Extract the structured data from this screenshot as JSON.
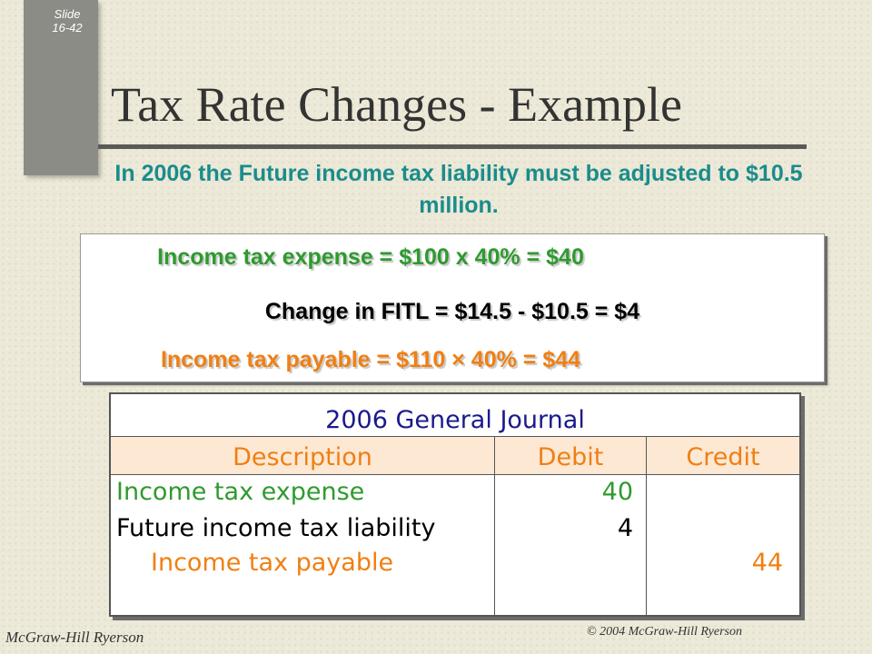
{
  "slide": {
    "label": "Slide",
    "number": "16-42"
  },
  "title": "Tax Rate Changes - Example",
  "subtitle": "In 2006 the Future income tax liability must be adjusted to $10.5 million.",
  "equations": {
    "expense": "Income tax expense = $100 x 40% = $40",
    "change": "Change in FITL = $14.5 - $10.5 = $4",
    "payable": "Income tax payable = $110 × 40% = $44"
  },
  "journal": {
    "title": "2006 General Journal",
    "headers": {
      "description": "Description",
      "debit": "Debit",
      "credit": "Credit"
    },
    "rows": [
      {
        "description": "Income tax expense",
        "debit": "40",
        "credit": ""
      },
      {
        "description": "Future income tax liability",
        "debit": "4",
        "credit": ""
      },
      {
        "description": "Income tax payable",
        "debit": "",
        "credit": "44"
      }
    ]
  },
  "footer": {
    "publisher": "McGraw-Hill Ryerson",
    "copyright": "© 2004 McGraw-Hill  Ryerson"
  },
  "colors": {
    "green": "#2f9a2f",
    "orange": "#f07f12",
    "teal": "#1a8c8c",
    "navy": "#1a1a8c"
  }
}
